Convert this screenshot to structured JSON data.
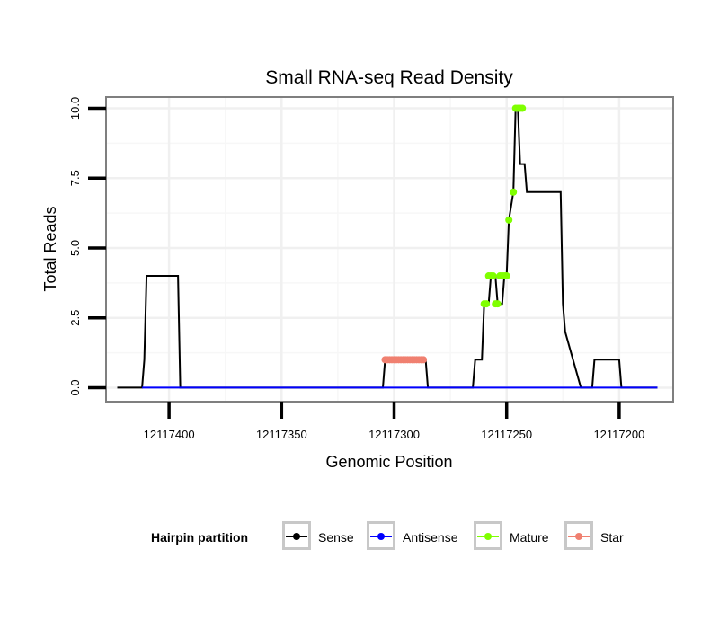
{
  "chart_data": {
    "type": "line",
    "title": "Small RNA-seq Read Density",
    "xlabel": "Genomic Position",
    "ylabel": "Total Reads",
    "x_reversed": true,
    "xlim": [
      12117428,
      12117176
    ],
    "ylim": [
      -0.5,
      10.4
    ],
    "x_ticks": [
      12117400,
      12117350,
      12117300,
      12117250,
      12117200
    ],
    "x_tick_labels": [
      "12117400",
      "12117350",
      "12117300",
      "12117250",
      "12117200"
    ],
    "y_ticks": [
      0,
      2.5,
      5,
      7.5,
      10
    ],
    "y_tick_labels": [
      "0.0",
      "2.5",
      "5.0",
      "7.5",
      "10.0"
    ],
    "grid": true,
    "legend": {
      "title": "Hairpin partition",
      "position": "bottom",
      "entries": [
        {
          "name": "Sense",
          "color": "#000000"
        },
        {
          "name": "Antisense",
          "color": "#0000ff"
        },
        {
          "name": "Mature",
          "color": "#7fff00"
        },
        {
          "name": "Star",
          "color": "#f08070"
        }
      ]
    },
    "series": [
      {
        "name": "Sense",
        "color": "#000000",
        "kind": "line",
        "x": [
          12117423,
          12117412,
          12117411,
          12117410,
          12117396,
          12117395,
          12117305,
          12117304,
          12117286,
          12117285,
          12117265,
          12117264,
          12117261,
          12117260,
          12117258,
          12117257,
          12117255,
          12117254,
          12117252,
          12117251,
          12117250,
          12117249,
          12117247,
          12117246,
          12117245,
          12117244,
          12117242,
          12117241,
          12117240,
          12117239,
          12117238,
          12117226,
          12117225,
          12117224,
          12117217,
          12117212,
          12117211,
          12117200,
          12117199,
          12117183
        ],
        "y": [
          0,
          0,
          1,
          4,
          4,
          0,
          0,
          1,
          1,
          0,
          0,
          1,
          1,
          3,
          3,
          4,
          4,
          3,
          3,
          4,
          4,
          6,
          7,
          10,
          10,
          8,
          8,
          7,
          7,
          7,
          7,
          7,
          3,
          2,
          0,
          0,
          1,
          1,
          0,
          0
        ]
      },
      {
        "name": "Antisense",
        "color": "#0000ff",
        "kind": "line",
        "x": [
          12117412,
          12117183
        ],
        "y": [
          0,
          0
        ]
      },
      {
        "name": "Mature",
        "color": "#7fff00",
        "kind": "points",
        "x": [
          12117260,
          12117259,
          12117258,
          12117257,
          12117256,
          12117255,
          12117254,
          12117253,
          12117252,
          12117251,
          12117250,
          12117249,
          12117247,
          12117246,
          12117245,
          12117244,
          12117243
        ],
        "y": [
          3,
          3,
          4,
          4,
          4,
          3,
          3,
          4,
          4,
          4,
          4,
          6,
          7,
          10,
          10,
          10,
          10
        ]
      },
      {
        "name": "Star",
        "color": "#f08070",
        "kind": "points",
        "x": [
          12117304,
          12117303,
          12117302,
          12117301,
          12117300,
          12117299,
          12117298,
          12117297,
          12117296,
          12117295,
          12117294,
          12117293,
          12117292,
          12117291,
          12117290,
          12117289,
          12117288,
          12117287
        ],
        "y": [
          1,
          1,
          1,
          1,
          1,
          1,
          1,
          1,
          1,
          1,
          1,
          1,
          1,
          1,
          1,
          1,
          1,
          1
        ]
      }
    ]
  }
}
